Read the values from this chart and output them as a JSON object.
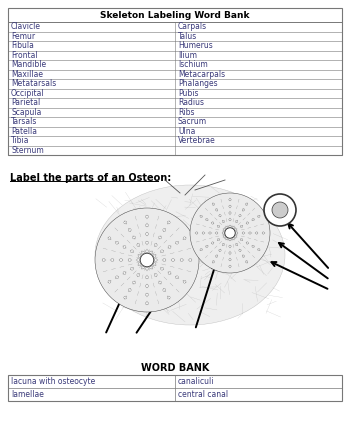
{
  "title": "Skeleton Labeling Word Bank",
  "left_col": [
    "Clavicle",
    "Femur",
    "Fibula",
    "Frontal",
    "Mandible",
    "Maxillae",
    "Metatarsals",
    "Occipital",
    "Parietal",
    "Scapula",
    "Tarsals",
    "Patella",
    "Tibia",
    "Sternum"
  ],
  "right_col": [
    "Carpals",
    "Talus",
    "Humerus",
    "Ilium",
    "Ischium",
    "Metacarpals",
    "Phalanges",
    "Pubis",
    "Radius",
    "Ribs",
    "Sacrum",
    "Ulna",
    "Vertebrae",
    ""
  ],
  "label_text": "Label the parts of an Osteon:",
  "word_bank_title": "WORD BANK",
  "word_bank_left": [
    "lacuna with osteocyte",
    "lamellae"
  ],
  "word_bank_right": [
    "canaliculi",
    "central canal"
  ],
  "bg_color": "#ffffff",
  "table_border_color": "#777777",
  "text_color": "#3a3a7a",
  "header_text_color": "#000000",
  "label_color": "#000000",
  "font_size": 5.5,
  "header_font_size": 6.5
}
